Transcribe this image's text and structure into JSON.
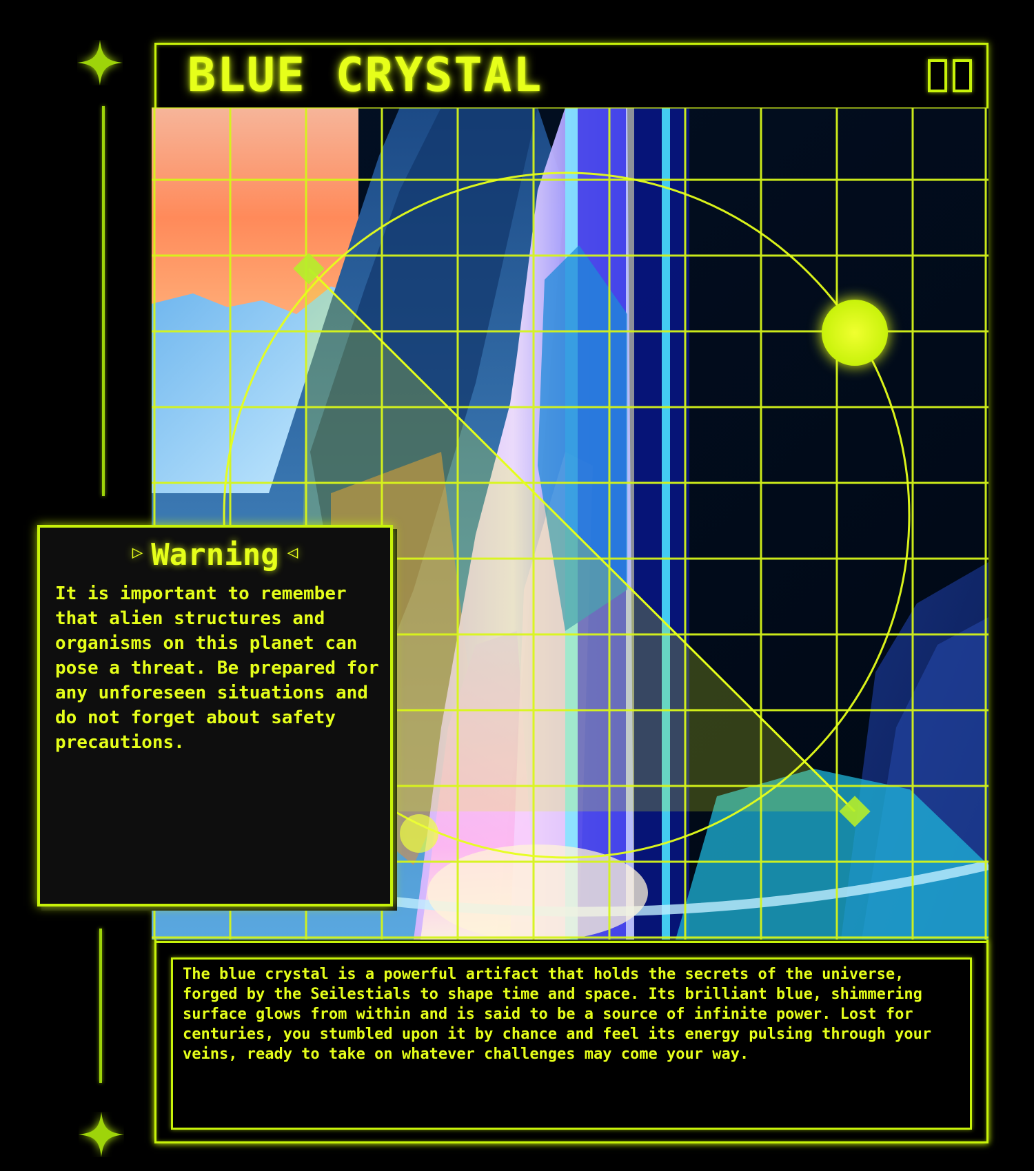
{
  "card": {
    "title": "BLUE CRYSTAL",
    "description": "The blue crystal is a powerful artifact that holds the secrets of the universe, forged by the Seilestials to shape time and space. Its brilliant blue, shimmering surface glows from within and is said to be a source of infinite power. Lost for centuries, you stumbled upon it by chance and feel its energy pulsing through your veins, ready to take on whatever challenges may come your way."
  },
  "warning": {
    "heading": "Warning",
    "left_icon": "play-triangle-right-icon",
    "right_icon": "play-triangle-left-icon",
    "body": "It is important to remember that alien structures and organisms on this planet can pose a threat. Be prepared for any unforeseen situations and do not forget about safety precautions."
  },
  "colors": {
    "accent": "#e6ff1a",
    "frame": "#c8f20a",
    "background": "#000000",
    "panel": "#0e0e0e"
  },
  "icons": {
    "top_ornament": "four-point-star-icon",
    "bottom_ornament": "four-point-star-icon",
    "corner_boxes": "double-square-icon"
  }
}
